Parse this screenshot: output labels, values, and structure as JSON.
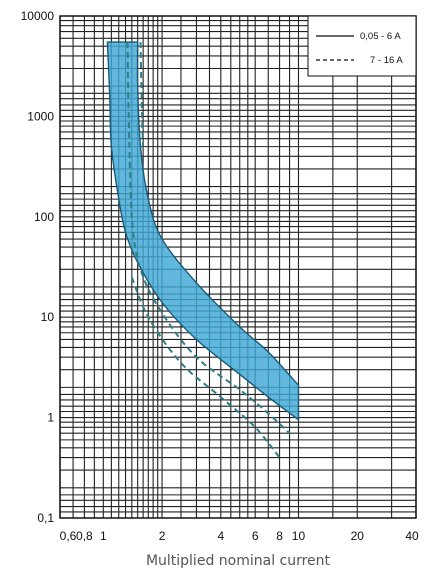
{
  "chart_data": {
    "type": "area",
    "title": "",
    "xlabel": "Multiplied nominal current",
    "ylabel": "",
    "x_scale": "log",
    "y_scale": "log",
    "xlim": [
      0.6,
      40
    ],
    "ylim": [
      0.1,
      10000
    ],
    "grid": true,
    "legend_position": "top-right",
    "x_ticks": [
      {
        "value": 0.6,
        "label": "0,6"
      },
      {
        "value": 0.8,
        "label": "0,8"
      },
      {
        "value": 1,
        "label": "1"
      },
      {
        "value": 2,
        "label": "2"
      },
      {
        "value": 4,
        "label": "4"
      },
      {
        "value": 6,
        "label": "6"
      },
      {
        "value": 8,
        "label": "8"
      },
      {
        "value": 10,
        "label": "10"
      },
      {
        "value": 20,
        "label": "20"
      },
      {
        "value": 40,
        "label": "40"
      }
    ],
    "y_ticks": [
      {
        "value": 0.1,
        "label": "0,1"
      },
      {
        "value": 1,
        "label": "1"
      },
      {
        "value": 10,
        "label": "10"
      },
      {
        "value": 100,
        "label": "100"
      },
      {
        "value": 1000,
        "label": "1000"
      },
      {
        "value": 10000,
        "label": "10000"
      }
    ],
    "series": [
      {
        "name": "0,05 - 6 A",
        "style": "band",
        "color": "#3fa7d6",
        "outline": "#1a5a78",
        "lower": [
          [
            1.05,
            5500
          ],
          [
            1.08,
            1500
          ],
          [
            1.1,
            500
          ],
          [
            1.2,
            150
          ],
          [
            1.3,
            70
          ],
          [
            1.5,
            35
          ],
          [
            2,
            14
          ],
          [
            3,
            6
          ],
          [
            5,
            2.7
          ],
          [
            7,
            1.6
          ],
          [
            10,
            0.95
          ]
        ],
        "upper": [
          [
            1.5,
            5500
          ],
          [
            1.5,
            2000
          ],
          [
            1.55,
            500
          ],
          [
            1.7,
            150
          ],
          [
            2,
            60
          ],
          [
            3,
            22
          ],
          [
            5,
            8
          ],
          [
            7,
            4.5
          ],
          [
            10,
            2.1
          ]
        ]
      },
      {
        "name": "7 - 16 A",
        "style": "dashed",
        "color": "#2f7f86",
        "lines": [
          [
            [
              1.33,
              5500
            ],
            [
              1.35,
              1000
            ],
            [
              1.4,
              100
            ],
            [
              1.55,
              30
            ],
            [
              2,
              11
            ],
            [
              3,
              4
            ],
            [
              5,
              1.9
            ],
            [
              7,
              1.1
            ],
            [
              9,
              0.7
            ]
          ],
          [
            [
              1.4,
              25
            ],
            [
              1.7,
              10
            ],
            [
              2.5,
              3.5
            ],
            [
              4,
              1.6
            ],
            [
              6,
              0.8
            ],
            [
              8,
              0.4
            ]
          ],
          [
            [
              1.55,
              5500
            ],
            [
              1.58,
              1000
            ],
            [
              1.6,
              500
            ]
          ]
        ]
      }
    ]
  }
}
